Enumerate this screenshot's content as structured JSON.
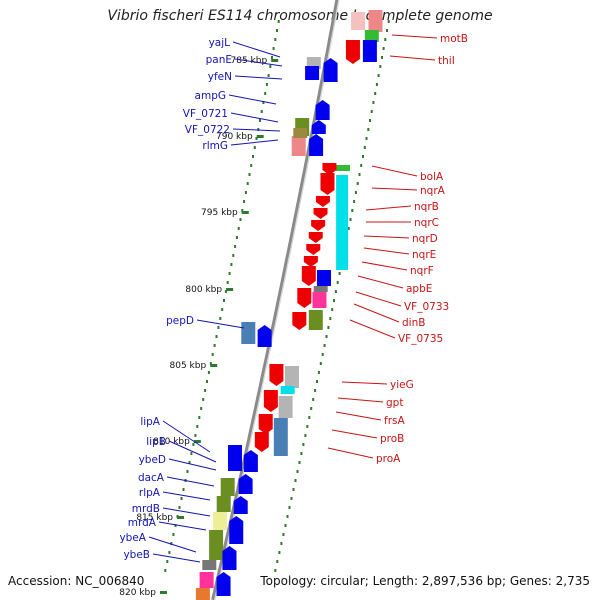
{
  "title": "Vibrio fischeri ES114 chromosome I, complete genome",
  "footer": {
    "accession": "Accession: NC_006840",
    "summary": "Topology: circular; Length: 2,897,536 bp; Genes: 2,735"
  },
  "colors": {
    "backbone": "#8a8a8a",
    "ticks": "#2f7a2f",
    "forward_label": "#1414b4",
    "reverse_label": "#c81414",
    "orange": "#e87830",
    "olive": "#6b8e23",
    "yellow": "#eeee99",
    "grey": "#b4b4b4",
    "cyan": "#00e0e8",
    "pink": "#ff3399",
    "steel": "#4a7fb5",
    "blue": "#0000ee",
    "red": "#ee0000",
    "rose": "#ee8888",
    "green": "#33bb33"
  },
  "kbp_ticks": [
    {
      "label": "785 kbp"
    },
    {
      "label": "790 kbp"
    },
    {
      "label": "795 kbp"
    },
    {
      "label": "800 kbp"
    },
    {
      "label": "805 kbp"
    },
    {
      "label": "810 kbp"
    },
    {
      "label": "815 kbp"
    },
    {
      "label": "820 kbp"
    }
  ],
  "forward_labels": [
    "yajL",
    "panE",
    "yfeN",
    "ampG",
    "VF_0721",
    "VF_0722",
    "rlmG",
    "pepD",
    "lipA",
    "lipB",
    "ybeD",
    "dacA",
    "rlpA",
    "mrdB",
    "mrdA",
    "ybeA",
    "ybeB"
  ],
  "reverse_labels": [
    "motB",
    "thiI",
    "bolA",
    "nqrA",
    "nqrB",
    "nqrC",
    "nqrD",
    "nqrE",
    "nqrF",
    "apbE",
    "VF_0733",
    "dinB",
    "VF_0735",
    "yieG",
    "gpt",
    "frsA",
    "proB",
    "proA"
  ]
}
